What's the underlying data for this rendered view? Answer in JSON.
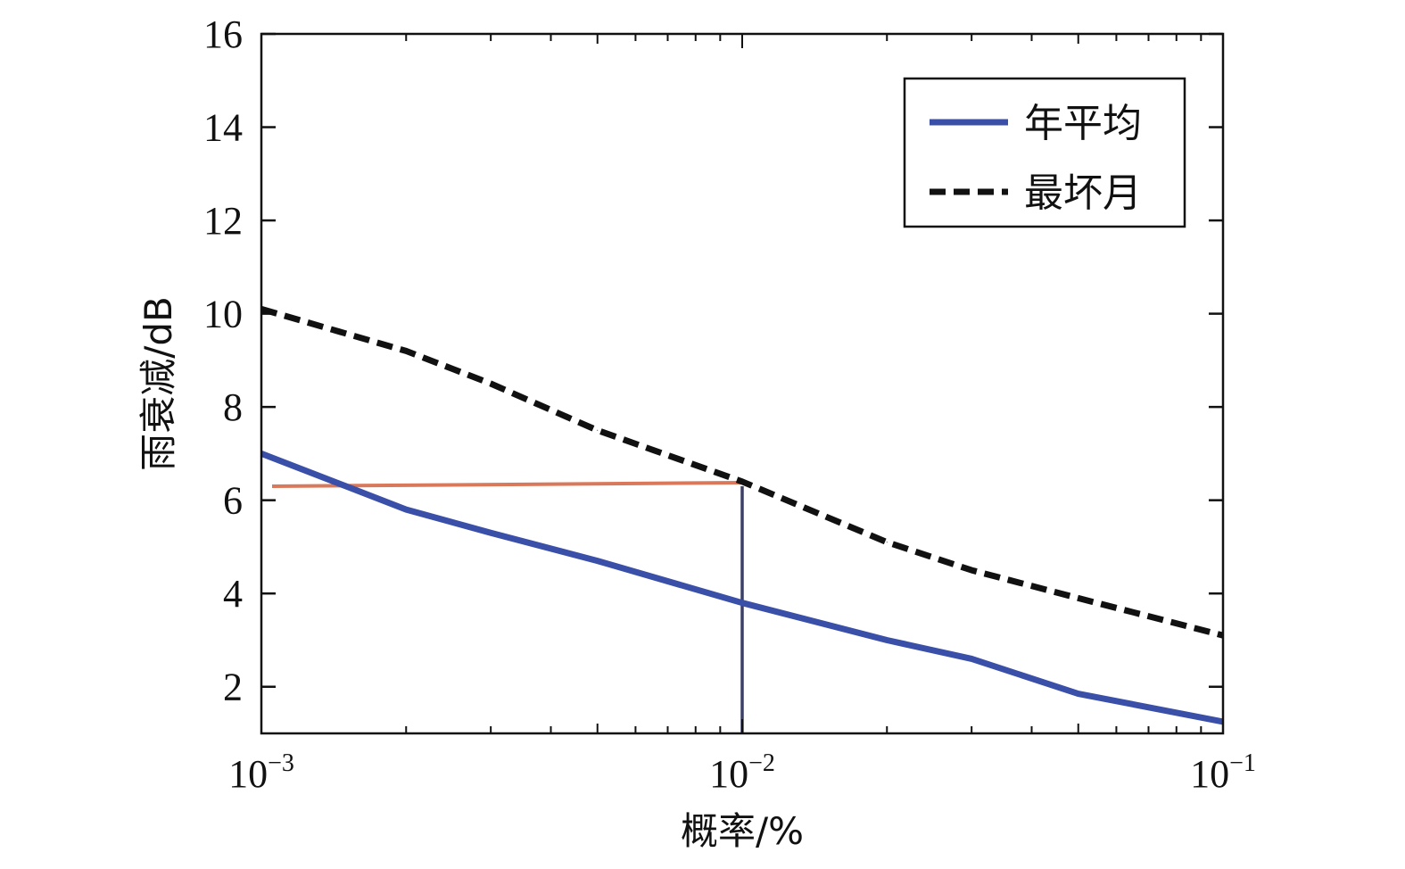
{
  "chart_data": {
    "type": "line",
    "xscale": "log",
    "xlim": [
      0.001,
      0.1
    ],
    "ylim": [
      1,
      16
    ],
    "xlabel": "概率/%",
    "ylabel": "雨衰减/dB",
    "x_ticks": [
      {
        "base": "10",
        "exp": "−3",
        "value": 0.001
      },
      {
        "base": "10",
        "exp": "−2",
        "value": 0.01
      },
      {
        "base": "10",
        "exp": "−1",
        "value": 0.1
      }
    ],
    "y_ticks": [
      "2",
      "4",
      "6",
      "8",
      "10",
      "12",
      "14",
      "16"
    ],
    "legend_position": "top-right",
    "series": [
      {
        "name": "年平均",
        "style": "solid",
        "color": "#3a4fa8",
        "points": [
          [
            0.001,
            7.0
          ],
          [
            0.0015,
            6.3
          ],
          [
            0.002,
            5.8
          ],
          [
            0.003,
            5.3
          ],
          [
            0.005,
            4.7
          ],
          [
            0.01,
            3.8
          ],
          [
            0.02,
            3.0
          ],
          [
            0.03,
            2.6
          ],
          [
            0.05,
            1.85
          ],
          [
            0.1,
            1.25
          ]
        ]
      },
      {
        "name": "最坏月",
        "style": "dashed",
        "color": "#111111",
        "points": [
          [
            0.001,
            10.1
          ],
          [
            0.002,
            9.2
          ],
          [
            0.003,
            8.5
          ],
          [
            0.005,
            7.5
          ],
          [
            0.01,
            6.4
          ],
          [
            0.02,
            5.1
          ],
          [
            0.03,
            4.5
          ],
          [
            0.05,
            3.9
          ],
          [
            0.1,
            3.1
          ]
        ]
      }
    ],
    "annotations": [
      {
        "type": "hline",
        "y": 6.3,
        "x_from": 0.001,
        "x_to": 0.01,
        "color": "#d9785a"
      },
      {
        "type": "vline",
        "x": 0.01,
        "y_from": 1,
        "y_to": 6.3,
        "color": "#3c4066"
      }
    ]
  }
}
